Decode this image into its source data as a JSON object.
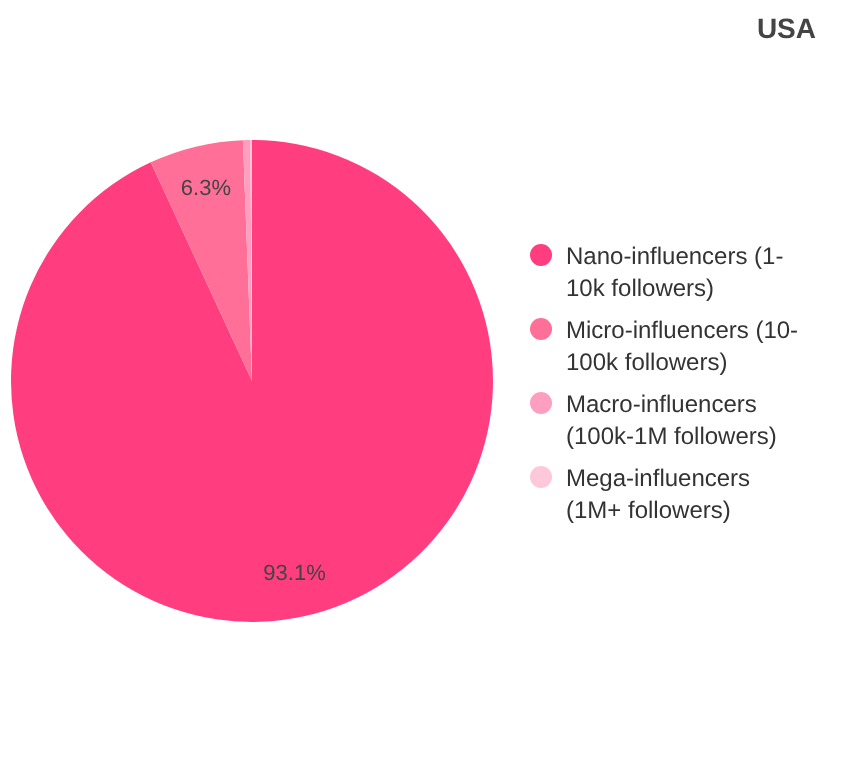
{
  "chart_data": {
    "type": "pie",
    "title": "USA",
    "categories": [
      "Nano-influencers (1-10k followers)",
      "Micro-influencers (10-100k followers)",
      "Macro-influencers (100k-1M followers)",
      "Mega-influencers (1M+ followers)"
    ],
    "values": [
      93.1,
      6.3,
      0.5,
      0.1
    ],
    "colors": [
      "#ff3d7f",
      "#ff6f98",
      "#ff9fbf",
      "#ffc8da"
    ],
    "value_labels": [
      "93.1%",
      "6.3%",
      null,
      null
    ],
    "legend": "right"
  }
}
